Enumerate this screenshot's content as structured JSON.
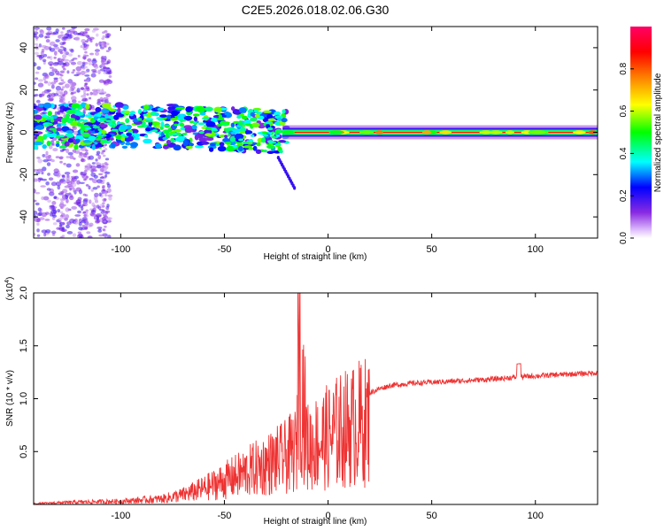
{
  "title": "C2E5.2026.018.02.06.G30",
  "chart_data": [
    {
      "type": "heatmap",
      "xlabel": "Height of straight line (km)",
      "ylabel": "Frequency (Hz)",
      "xlim": [
        -142,
        130
      ],
      "ylim": [
        -50,
        50
      ],
      "x_ticks": [
        -100,
        -50,
        0,
        50,
        100
      ],
      "x_tick_labels": [
        "-100",
        "-50",
        "0",
        "50",
        "100"
      ],
      "y_ticks": [
        -40,
        -20,
        0,
        20,
        40
      ],
      "y_tick_labels": [
        "-40",
        "-20",
        "0",
        "20",
        "40"
      ],
      "colorbar": {
        "label": "Normalized spectral amplitude",
        "range": [
          0,
          1
        ],
        "ticks": [
          0.0,
          0.2,
          0.4,
          0.6,
          0.8
        ],
        "tick_labels": [
          "0.0",
          "0.2",
          "0.4",
          "0.6",
          "0.8"
        ],
        "colors": [
          "#ffffff",
          "#8a2be2",
          "#0000ff",
          "#00ffff",
          "#00ff00",
          "#ffff00",
          "#ff8000",
          "#ff0000",
          "#ff0066"
        ]
      },
      "features": [
        {
          "name": "carrier line",
          "x_range": [
            -22,
            130
          ],
          "frequency": 0,
          "amplitude": 0.85
        },
        {
          "name": "scatter band",
          "x_range": [
            -142,
            -20
          ],
          "frequency_range": [
            -15,
            12
          ],
          "amplitude": 0.35
        },
        {
          "name": "noise",
          "x_range": [
            -142,
            -105
          ],
          "frequency_range": [
            -50,
            50
          ],
          "amplitude": 0.1
        }
      ]
    },
    {
      "type": "line",
      "xlabel": "Height of straight line (km)",
      "ylabel": "SNR (10 * v/v)",
      "y_multiplier_label": "(x10^4)",
      "xlim": [
        -142,
        130
      ],
      "ylim": [
        0,
        2.0
      ],
      "x_ticks": [
        -100,
        -50,
        0,
        50,
        100
      ],
      "x_tick_labels": [
        "-100",
        "-50",
        "0",
        "50",
        "100"
      ],
      "y_ticks": [
        0.5,
        1.0,
        1.5,
        2.0
      ],
      "y_tick_labels": [
        "0.5",
        "1.0",
        "1.5",
        "2.0"
      ],
      "series_color": "#ee3333",
      "x": [
        -142,
        -120,
        -100,
        -80,
        -70,
        -60,
        -50,
        -40,
        -30,
        -20,
        -15,
        -14,
        -10,
        0,
        5,
        10,
        15,
        20,
        25,
        30,
        40,
        50,
        60,
        70,
        80,
        92,
        100,
        110,
        120,
        130
      ],
      "y": [
        0.01,
        0.03,
        0.04,
        0.07,
        0.12,
        0.2,
        0.3,
        0.4,
        0.5,
        0.6,
        0.7,
        2.0,
        0.72,
        0.85,
        0.92,
        0.97,
        1.02,
        1.06,
        1.1,
        1.13,
        1.15,
        1.16,
        1.17,
        1.18,
        1.19,
        1.21,
        1.22,
        1.23,
        1.24,
        1.25
      ]
    }
  ]
}
